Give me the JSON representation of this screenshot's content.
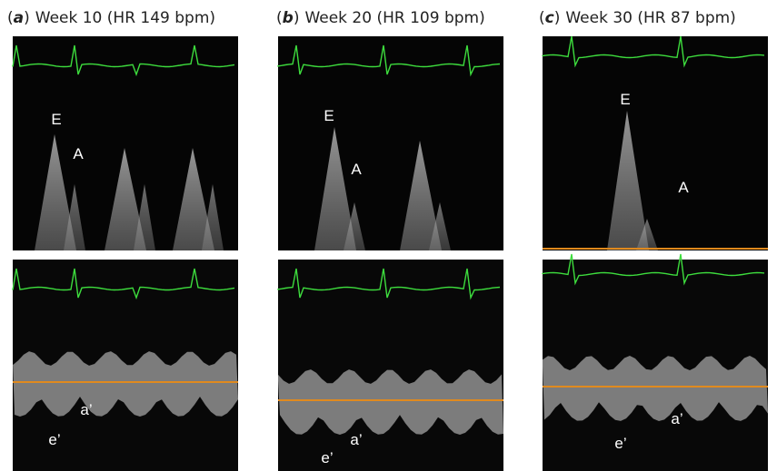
{
  "brackets": [
    "(",
    ")"
  ],
  "panels": [
    {
      "label": "a",
      "title": "Week 10 (HR 149 bpm)",
      "top_labels": [
        "E",
        "A"
      ],
      "bottom_labels": [
        "e’",
        "a’"
      ]
    },
    {
      "label": "b",
      "title": "Week 20 (HR 109 bpm)",
      "top_labels": [
        "E",
        "A"
      ],
      "bottom_labels": [
        "e’",
        "a’"
      ]
    },
    {
      "label": "c",
      "title": "Week 30 (HR 87 bpm)",
      "top_labels": [
        "E",
        "A"
      ],
      "bottom_labels": [
        "e’",
        "a’"
      ]
    }
  ]
}
